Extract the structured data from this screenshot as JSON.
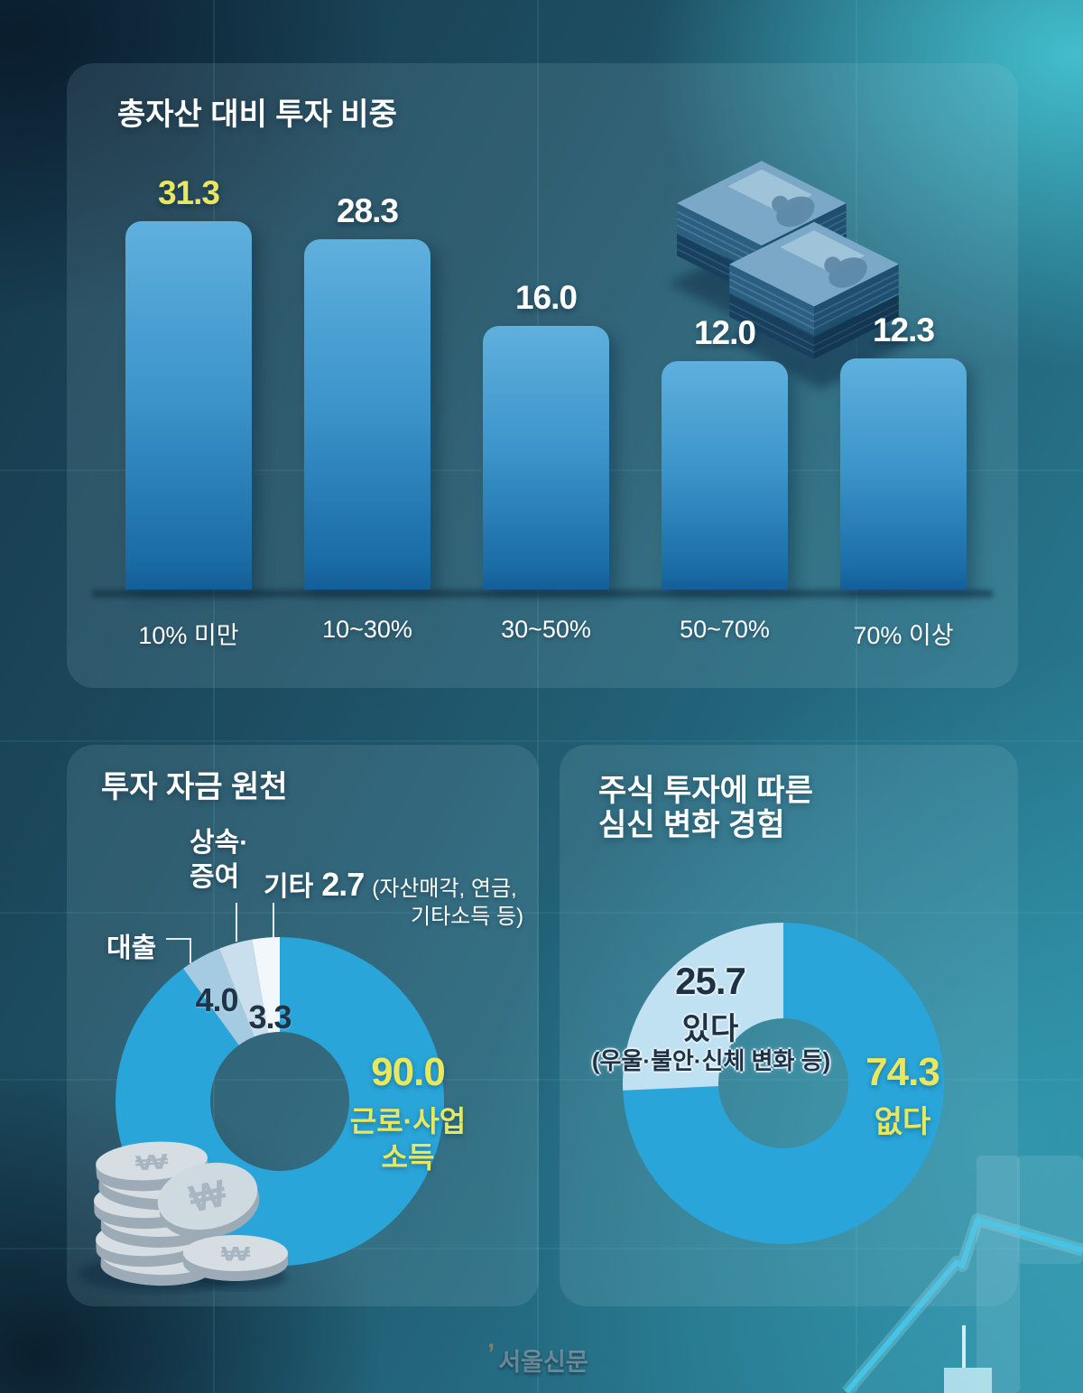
{
  "colors": {
    "accent_blue": "#29a5d9",
    "highlight_yellow": "#e9e75e",
    "light_blue": "#bfe1f1",
    "pale_blue": "#cadfed",
    "near_white": "#f1f7fb",
    "loan_blue": "#a5cbe2",
    "dark_value_text": "#203448",
    "bar_top": "#5fb0dd",
    "bar_bottom": "#135e97"
  },
  "icons": {
    "money": "banknote-stacks-illustration",
    "coins": "won-coin-stack-illustration",
    "decor": "rising-stock-line-decoration",
    "watermark_mark": "quote-logo-mark"
  },
  "watermark": {
    "publisher": "서울신문"
  },
  "chart_data": [
    {
      "id": "investment-ratio",
      "type": "bar",
      "title": "총자산 대비 투자 비중",
      "categories": [
        "10% 미만",
        "10~30%",
        "30~50%",
        "50~70%",
        "70% 이상"
      ],
      "values": [
        31.3,
        28.3,
        16.0,
        12.0,
        12.3
      ],
      "value_labels": [
        "31.3",
        "28.3",
        "16.0",
        "12.0",
        "12.3"
      ],
      "highlight_index": 0,
      "highlight_color": "#e9e75e",
      "ylim": [
        0,
        35
      ],
      "grid": false,
      "legend": "none"
    },
    {
      "id": "fund-source",
      "type": "donut",
      "title": "투자 자금 원천",
      "segments": [
        {
          "label": "근로·사업 소득",
          "value": 90.0,
          "color": "#29a5d9"
        },
        {
          "label": "대출",
          "value": 4.0,
          "color": "#a5cbe2"
        },
        {
          "label": "상속·증여",
          "value": 3.3,
          "color": "#cadfed"
        },
        {
          "label": "기타",
          "value": 2.7,
          "color": "#f1f7fb",
          "note": "(자산매각, 연금, 기타소득 등)"
        }
      ],
      "display": {
        "loan_label": "대출",
        "loan_value": "4.0",
        "inherit_line1": "상속·",
        "inherit_line2": "증여",
        "inherit_value": "3.3",
        "other_label": "기타",
        "other_value": "2.7",
        "other_note_line1": "(자산매각, 연금,",
        "other_note_line2": "기타소득 등)",
        "main_value": "90.0",
        "main_line1": "근로·사업",
        "main_line2": "소득"
      }
    },
    {
      "id": "mind-body-change",
      "type": "donut",
      "title": "주식 투자에 따른 심신 변화 경험",
      "title_lines": [
        "주식 투자에 따른",
        "심신 변화 경험"
      ],
      "segments": [
        {
          "label": "없다",
          "value": 74.3,
          "color": "#29a5d9"
        },
        {
          "label": "있다",
          "value": 25.7,
          "color": "#bfe1f1",
          "note": "(우울·불안·신체 변화 등)"
        }
      ],
      "display": {
        "yes_value": "25.7",
        "yes_label": "있다",
        "yes_note": "(우울·불안·신체 변화 등)",
        "no_value": "74.3",
        "no_label": "없다"
      }
    }
  ]
}
